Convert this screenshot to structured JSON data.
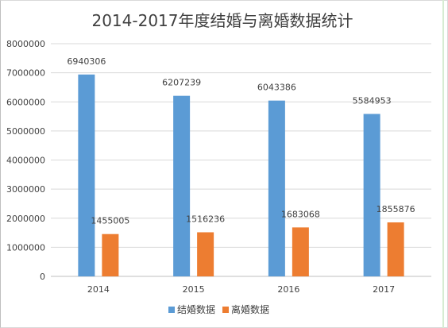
{
  "chart_data": {
    "type": "bar",
    "title": "2014-2017年度结婚与离婚数据统计",
    "categories": [
      "2014",
      "2015",
      "2016",
      "2017"
    ],
    "series": [
      {
        "name": "结婚数据",
        "values": [
          6940306,
          6207239,
          6043386,
          5584953
        ],
        "color": "#5b9bd5"
      },
      {
        "name": "离婚数据",
        "values": [
          1455005,
          1516236,
          1683068,
          1855876
        ],
        "color": "#ed7d31"
      }
    ],
    "ylim": [
      0,
      8000000
    ],
    "yticks": [
      "0",
      "1000000",
      "2000000",
      "3000000",
      "4000000",
      "5000000",
      "6000000",
      "7000000",
      "8000000"
    ],
    "grid": true,
    "legend": "bottom",
    "xlabel": "",
    "ylabel": ""
  }
}
